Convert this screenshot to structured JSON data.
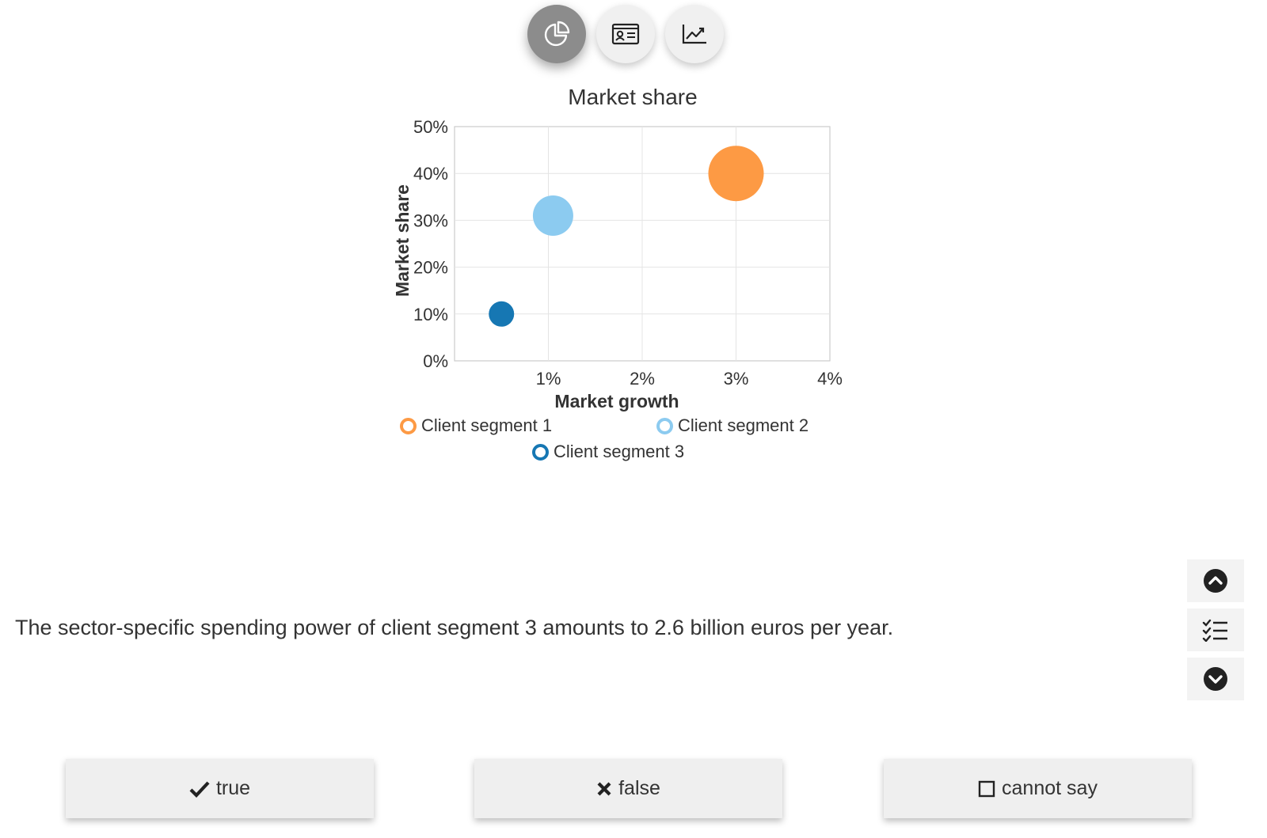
{
  "tabs": [
    {
      "name": "pie-chart-icon",
      "active": true
    },
    {
      "name": "contact-card-icon",
      "active": false
    },
    {
      "name": "line-chart-icon",
      "active": false
    }
  ],
  "chart_data": {
    "type": "scatter",
    "title": "Market share",
    "xlabel": "Market growth",
    "ylabel": "Market share",
    "xlim": [
      0,
      4
    ],
    "ylim": [
      0,
      50
    ],
    "x_ticks": [
      "1%",
      "2%",
      "3%",
      "4%"
    ],
    "y_ticks": [
      "0%",
      "10%",
      "20%",
      "30%",
      "40%",
      "50%"
    ],
    "grid": true,
    "legend": "bottom",
    "series": [
      {
        "name": "Client segment 1",
        "color": "#fd9a44",
        "x": 3,
        "y": 40,
        "size": 3
      },
      {
        "name": "Client segment 2",
        "color": "#8ccbf0",
        "x": 1.05,
        "y": 31,
        "size": 2
      },
      {
        "name": "Client segment 3",
        "color": "#1677b3",
        "x": 0.5,
        "y": 10,
        "size": 1
      }
    ]
  },
  "statement": "The sector-specific spending power of client segment 3 amounts to 2.6 billion euros per year.",
  "side_nav": [
    "chevron-up-icon",
    "checklist-icon",
    "chevron-down-icon"
  ],
  "answers": [
    {
      "label": "true",
      "icon": "check-icon"
    },
    {
      "label": "false",
      "icon": "cross-icon"
    },
    {
      "label": "cannot say",
      "icon": "checkbox-icon"
    }
  ]
}
